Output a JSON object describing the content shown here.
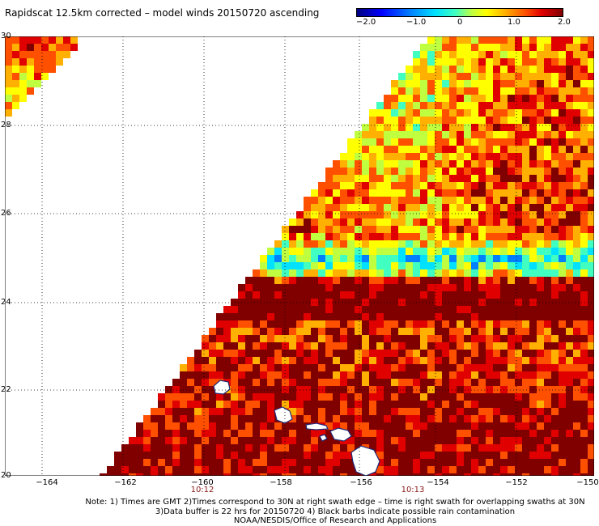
{
  "title": "Rapidscat 12.5km corrected – model winds 20150720 ascending",
  "colorbar": {
    "ticks": [
      "−2.0",
      "−1.0",
      "0",
      "1.0",
      "2.0"
    ],
    "range": [
      -2.0,
      2.0
    ],
    "colors": [
      "#00007f",
      "#0000ff",
      "#0080ff",
      "#00e0ff",
      "#40ffc0",
      "#c0ff40",
      "#ffff00",
      "#ffb000",
      "#ff5000",
      "#e00000",
      "#800000"
    ]
  },
  "map": {
    "lon_range": [
      -165,
      -150
    ],
    "lat_range": [
      20,
      30
    ],
    "y_ticks": [
      "30",
      "28",
      "26",
      "24",
      "22",
      "20"
    ],
    "x_ticks": [
      "−164",
      "−162",
      "−160",
      "−158",
      "−156",
      "−154",
      "−152",
      "−150"
    ],
    "time_labels": [
      {
        "text": "10:12",
        "lon": -160
      },
      {
        "text": "10:13",
        "lon": -155
      }
    ],
    "grid": true,
    "land_color": "#1e2a78"
  },
  "notes": [
    "Note: 1) Times are GMT 2)Times correspond to 30N at right swath edge – time is right swath for overlapping swaths at 30N",
    "3)Data buffer is 22 hrs for 20150720 4) Black barbs indicate possible rain contamination",
    "NOAA/NESDIS/Office of Research and Applications"
  ]
}
